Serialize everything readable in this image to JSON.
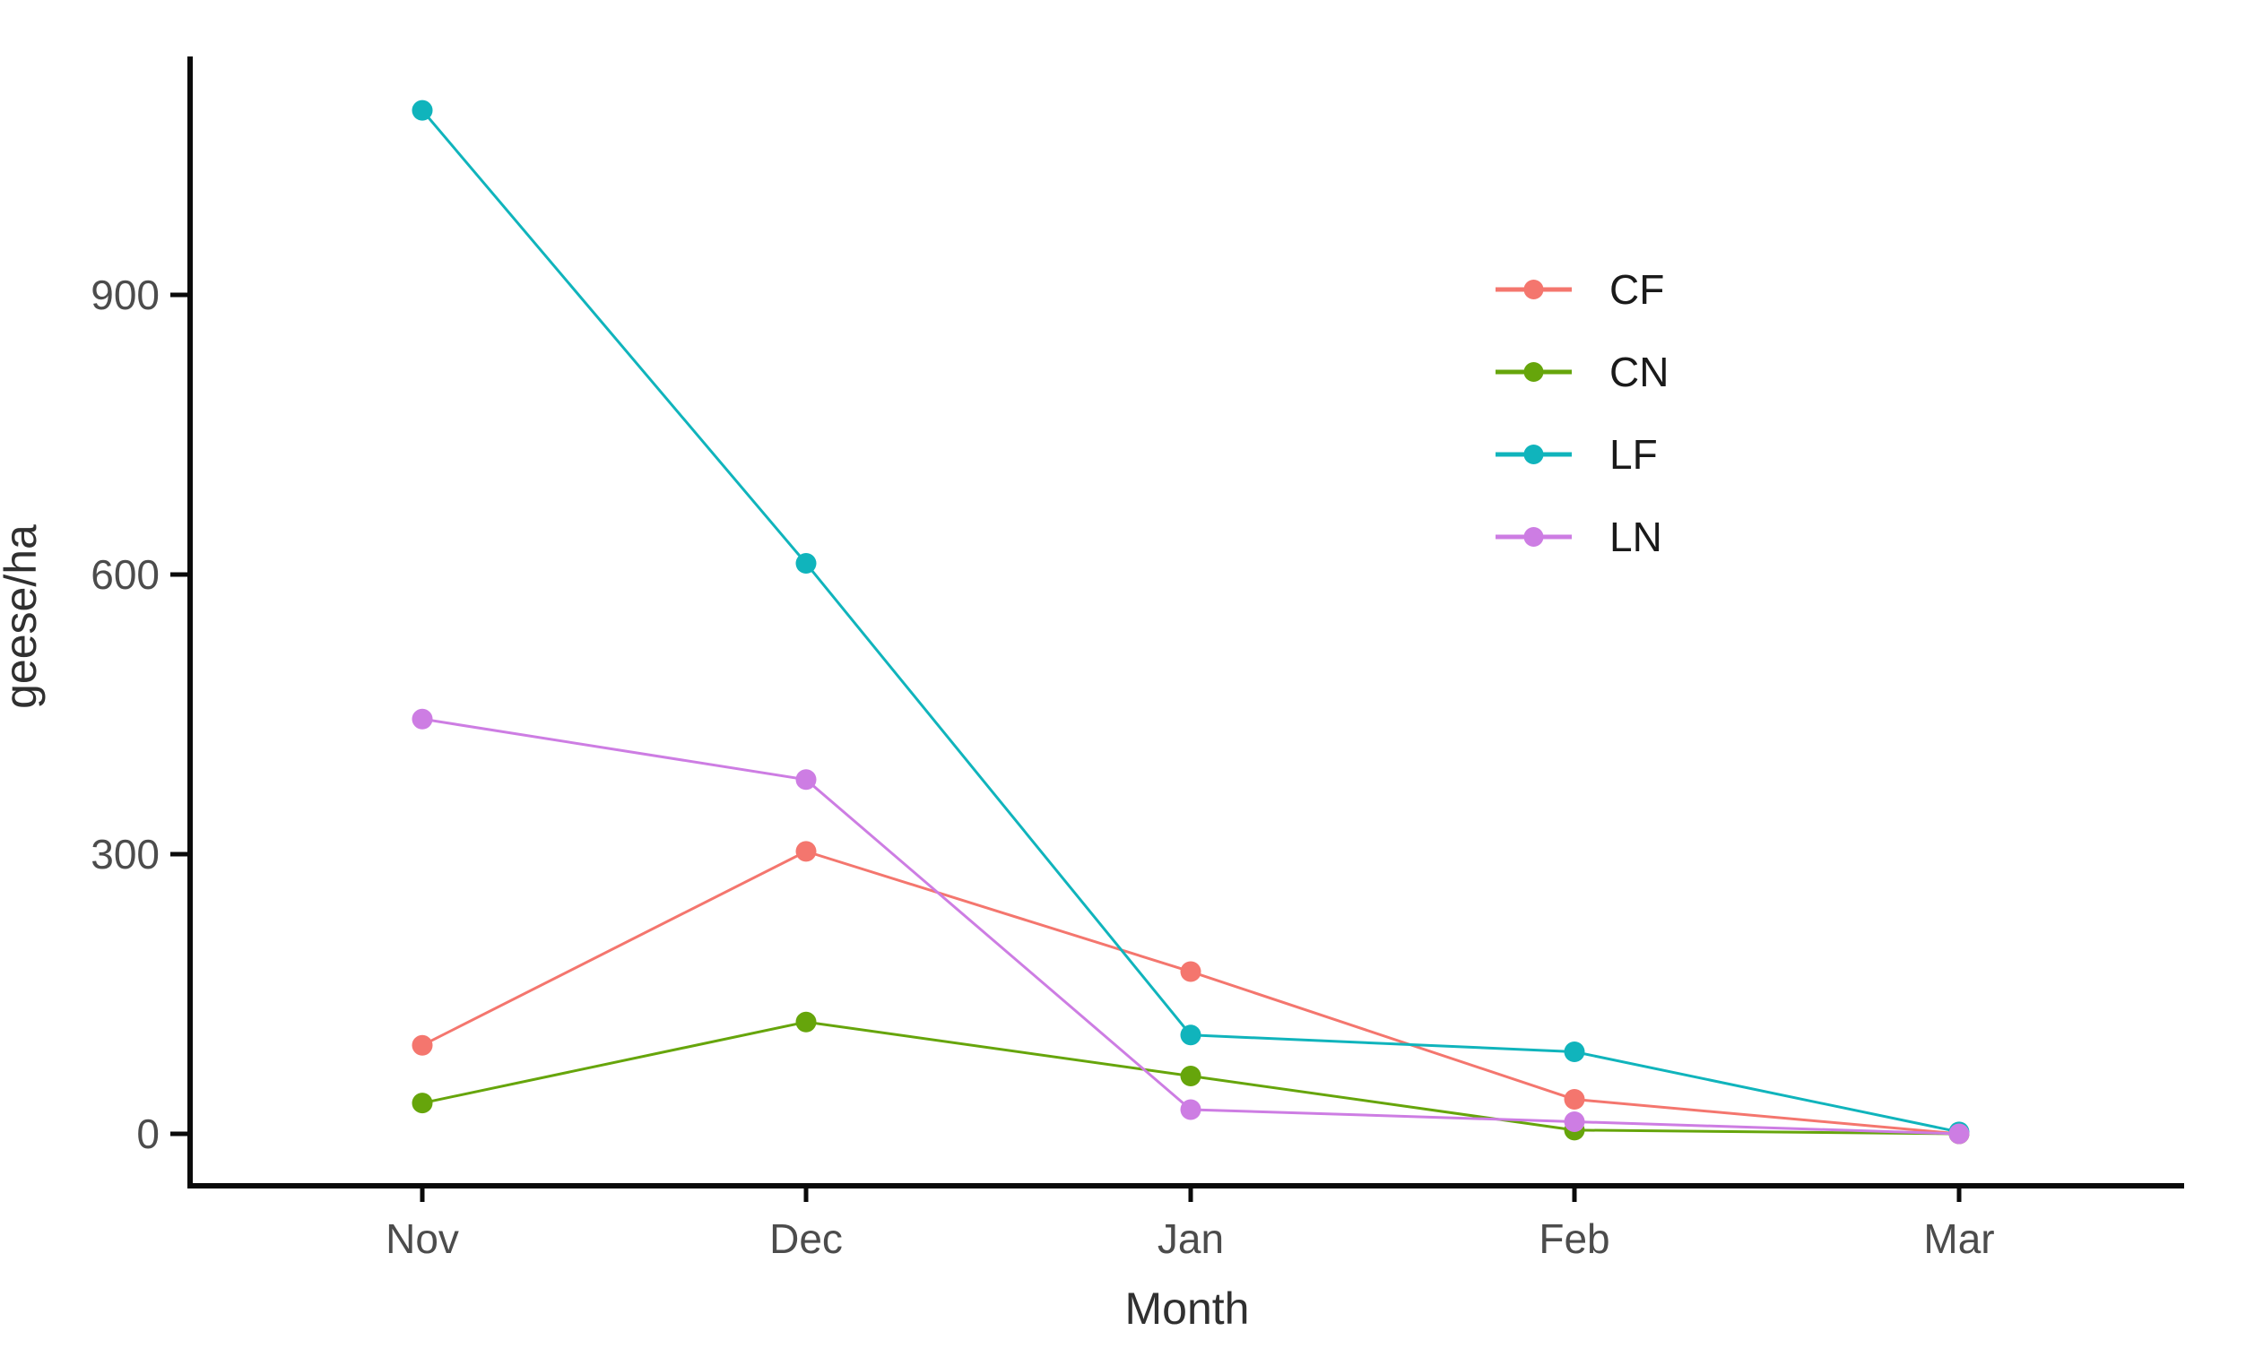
{
  "chart_data": {
    "type": "line",
    "title": "",
    "xlabel": "Month",
    "ylabel": "geese/ha",
    "categories": [
      "Nov",
      "Dec",
      "Jan",
      "Feb",
      "Mar"
    ],
    "yticks": [
      0,
      300,
      600,
      900
    ],
    "ylim": [
      -55,
      1155
    ],
    "grid": false,
    "legend": {
      "position": "inside-top-right",
      "entries": [
        "CF",
        "CN",
        "LF",
        "LN"
      ]
    },
    "series": [
      {
        "name": "CF",
        "color": "#F4766E",
        "values": [
          95,
          303,
          174,
          37,
          0
        ]
      },
      {
        "name": "CN",
        "color": "#66A50B",
        "values": [
          33,
          120,
          62,
          4,
          0
        ]
      },
      {
        "name": "LF",
        "color": "#10B4BC",
        "values": [
          1098,
          612,
          106,
          88,
          2
        ]
      },
      {
        "name": "LN",
        "color": "#CD7DE3",
        "values": [
          445,
          380,
          26,
          13,
          0
        ]
      }
    ]
  },
  "colors": {
    "axis_line": "#0a0a0a",
    "tick_label": "#4c4c4c",
    "axis_title": "#303030",
    "background": "#ffffff"
  }
}
